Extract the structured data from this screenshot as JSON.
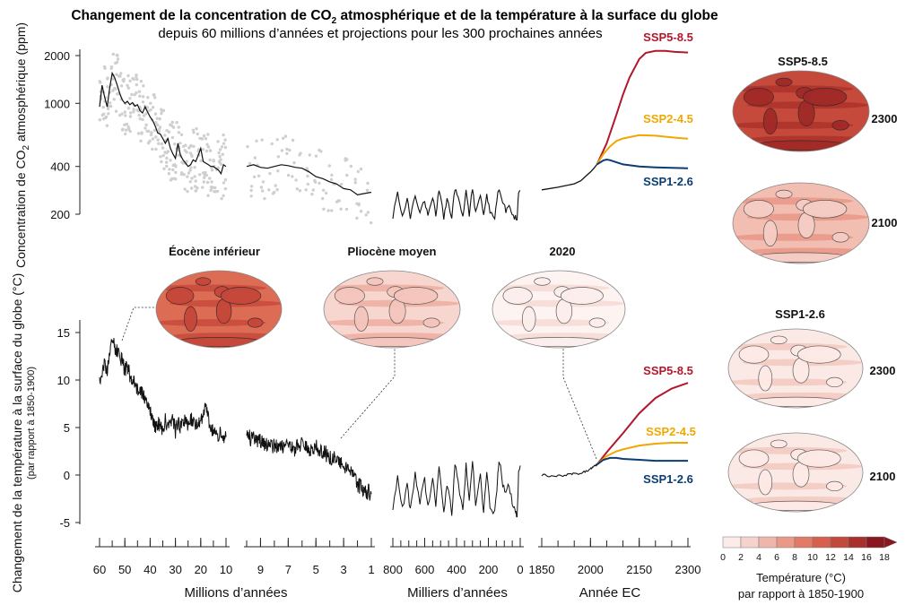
{
  "title": "Changement de la concentration de CO",
  "title_subscript": "2",
  "title_rest": " atmosphérique et de la température à la surface du globe",
  "subtitle": "depuis 60 millions d’années et projections pour les 300 prochaines années",
  "colors": {
    "ssp585": "#b2182b",
    "ssp245": "#f0a800",
    "ssp126": "#0b3d72",
    "history": "#111111",
    "proxy_dots": "#cfcfcf"
  },
  "chart_data": [
    {
      "type": "line",
      "name": "co2",
      "ylabel": "Concentration de CO₂ atmosphérique (ppm)",
      "ylabel_main": "Concentration de CO",
      "ylabel_sub": "2",
      "ylabel_rest": " atmosphérique (ppm)",
      "yscale": "log",
      "yticks": [
        200,
        400,
        1000,
        2000
      ],
      "ylim": [
        160,
        2600
      ],
      "panels": [
        {
          "xlabel": "Millions d’années",
          "segments": [
            {
              "xlim": [
                60,
                10
              ],
              "x": [
                60,
                59,
                58,
                57,
                56,
                55,
                54,
                53,
                52,
                51,
                50,
                49,
                48,
                47,
                46,
                45,
                44,
                43,
                42,
                41,
                40,
                39,
                38,
                37,
                36,
                35,
                34,
                33,
                32,
                31,
                30,
                29,
                28,
                27,
                26,
                25,
                24,
                23,
                22,
                21,
                20,
                19,
                18,
                17,
                16,
                15,
                14,
                13,
                12,
                11,
                10
              ],
              "y": [
                950,
                1300,
                1100,
                950,
                1250,
                1550,
                1450,
                1300,
                1150,
                1050,
                1000,
                1030,
                980,
                1010,
                960,
                980,
                900,
                870,
                950,
                880,
                820,
                780,
                720,
                650,
                640,
                600,
                560,
                600,
                520,
                480,
                450,
                560,
                470,
                440,
                420,
                400,
                410,
                440,
                430,
                470,
                520,
                430,
                420,
                410,
                400,
                400,
                390,
                380,
                360,
                410,
                400
              ]
            },
            {
              "xlim": [
                10,
                1
              ],
              "x": [
                10,
                9.5,
                9,
                8.5,
                8,
                7.5,
                7,
                6.5,
                6,
                5.5,
                5,
                4.5,
                4,
                3.5,
                3,
                2.5,
                2,
                1.5,
                1
              ],
              "y": [
                400,
                410,
                395,
                390,
                400,
                410,
                405,
                395,
                390,
                370,
                345,
                335,
                320,
                310,
                290,
                285,
                265,
                270,
                275
              ]
            }
          ]
        },
        {
          "xlabel": "Milliers d’années",
          "xlim": [
            800,
            0
          ],
          "x": [
            800,
            770,
            740,
            710,
            690,
            660,
            630,
            600,
            580,
            550,
            530,
            510,
            480,
            460,
            430,
            410,
            390,
            360,
            340,
            320,
            300,
            280,
            250,
            230,
            210,
            190,
            160,
            140,
            130,
            110,
            90,
            70,
            50,
            30,
            20,
            10,
            0
          ],
          "y": [
            190,
            270,
            190,
            250,
            195,
            260,
            200,
            245,
            195,
            255,
            200,
            280,
            190,
            250,
            190,
            290,
            260,
            190,
            280,
            200,
            290,
            200,
            260,
            190,
            270,
            200,
            190,
            270,
            290,
            240,
            210,
            230,
            200,
            190,
            185,
            270,
            280
          ]
        },
        {
          "xlabel": "Année EC",
          "xlim": [
            1850,
            2300
          ],
          "xticks": [
            1850,
            2000,
            2150,
            2300
          ],
          "history": {
            "x": [
              1850,
              1900,
              1950,
              1970,
              1990,
              2000,
              2010,
              2020
            ],
            "y": [
              285,
              296,
              311,
              325,
              354,
              369,
              389,
              412
            ]
          },
          "series": [
            {
              "name": "SSP5-8.5",
              "x": [
                2020,
                2050,
                2080,
                2100,
                2120,
                2150,
                2170,
                2200,
                2230,
                2260,
                2300
              ],
              "y": [
                412,
                560,
                850,
                1135,
                1450,
                1900,
                2080,
                2140,
                2140,
                2110,
                2090
              ]
            },
            {
              "name": "SSP2-4.5",
              "x": [
                2020,
                2040,
                2060,
                2080,
                2100,
                2150,
                2200,
                2250,
                2300
              ],
              "y": [
                412,
                480,
                535,
                580,
                600,
                630,
                625,
                610,
                598
              ]
            },
            {
              "name": "SSP1-2.6",
              "x": [
                2020,
                2040,
                2050,
                2060,
                2080,
                2100,
                2150,
                2200,
                2250,
                2300
              ],
              "y": [
                412,
                437,
                442,
                438,
                425,
                412,
                400,
                395,
                392,
                390
              ]
            }
          ]
        }
      ]
    },
    {
      "type": "line",
      "name": "temperature",
      "ylabel": "Changement de la température à la surface du globe (°C)",
      "ylabel_sub": "(par rapport à 1850-1900)",
      "yticks": [
        -5,
        0,
        5,
        10,
        15
      ],
      "ylim": [
        -5.5,
        16
      ],
      "panels": [
        {
          "xlabel": "Millions d’années",
          "xticks": [
            60,
            50,
            40,
            30,
            20,
            10
          ],
          "segments": [
            {
              "xlim": [
                60,
                10
              ],
              "x": [
                60,
                59,
                58,
                57,
                56,
                55,
                54,
                53,
                52,
                51,
                50,
                49,
                48,
                47,
                46,
                45,
                44,
                43,
                42,
                41,
                40,
                39,
                38,
                37,
                36,
                35,
                34,
                33,
                32,
                31,
                30,
                29,
                28,
                27,
                26,
                25,
                24,
                23,
                22,
                21,
                20,
                19,
                18,
                17,
                16,
                15,
                14,
                13,
                12,
                11,
                10
              ],
              "y": [
                10,
                11,
                12,
                11,
                13,
                14,
                13.5,
                13,
                12.5,
                12,
                11,
                11.5,
                10.5,
                10,
                9.5,
                9,
                9,
                8.5,
                8,
                7.5,
                7,
                6,
                5,
                5.5,
                5,
                4.5,
                6,
                5,
                5.5,
                6,
                4.5,
                5.5,
                5,
                6,
                5.5,
                5,
                6,
                5.5,
                5,
                6,
                5.5,
                6.5,
                7,
                6,
                5,
                4.5,
                5,
                4,
                4.5,
                4,
                4
              ]
            },
            {
              "xlim": [
                10,
                1
              ],
              "xticks": [
                9,
                7,
                5,
                3,
                1
              ],
              "x": [
                10,
                9.5,
                9,
                8.5,
                8,
                7.5,
                7,
                6.5,
                6,
                5.5,
                5,
                4.5,
                4,
                3.5,
                3,
                2.5,
                2,
                1.5,
                1
              ],
              "y": [
                4,
                3.8,
                3.5,
                3.2,
                3,
                3,
                2.8,
                2.8,
                3.5,
                2.5,
                3,
                2.5,
                2,
                1.5,
                1,
                0.5,
                -1,
                -1.5,
                -2
              ]
            }
          ]
        },
        {
          "xlabel": "Milliers d’années",
          "xlim": [
            800,
            0
          ],
          "xticks": [
            800,
            600,
            400,
            200,
            0
          ],
          "x": [
            800,
            770,
            740,
            710,
            690,
            660,
            630,
            600,
            580,
            550,
            530,
            510,
            480,
            460,
            430,
            410,
            390,
            360,
            340,
            320,
            300,
            280,
            250,
            230,
            210,
            190,
            160,
            140,
            130,
            110,
            90,
            70,
            50,
            30,
            20,
            10,
            0
          ],
          "y": [
            -3.5,
            0,
            -3.5,
            -1,
            -3.8,
            0,
            -3,
            -0.5,
            -3.5,
            0,
            -3,
            1,
            -4,
            -1,
            -4,
            1,
            -0.5,
            -4,
            1,
            -3,
            1.5,
            -3,
            0,
            -4,
            0.5,
            -3.5,
            -4,
            0,
            1.5,
            -1,
            -2,
            -1,
            -3,
            -4,
            -4.5,
            0,
            1
          ]
        },
        {
          "xlabel": "Année EC",
          "xlim": [
            1850,
            2300
          ],
          "xticks": [
            1850,
            2000,
            2150,
            2300
          ],
          "history": {
            "x": [
              1850,
              1880,
              1910,
              1940,
              1960,
              1980,
              2000,
              2010,
              2020
            ],
            "y": [
              0,
              -0.1,
              -0.1,
              0.1,
              0.1,
              0.3,
              0.7,
              0.9,
              1.1
            ]
          },
          "series": [
            {
              "name": "SSP5-8.5",
              "x": [
                2020,
                2050,
                2080,
                2100,
                2150,
                2200,
                2250,
                2300
              ],
              "y": [
                1.1,
                2.4,
                3.6,
                4.4,
                6.5,
                8.1,
                9.1,
                9.7
              ]
            },
            {
              "name": "SSP2-4.5",
              "x": [
                2020,
                2050,
                2080,
                2100,
                2150,
                2200,
                2250,
                2300
              ],
              "y": [
                1.1,
                2.0,
                2.5,
                2.7,
                3.1,
                3.3,
                3.4,
                3.4
              ]
            },
            {
              "name": "SSP1-2.6",
              "x": [
                2020,
                2040,
                2060,
                2080,
                2100,
                2150,
                2200,
                2250,
                2300
              ],
              "y": [
                1.1,
                1.6,
                1.8,
                1.8,
                1.7,
                1.6,
                1.5,
                1.5,
                1.5
              ]
            }
          ]
        }
      ]
    }
  ],
  "maps": {
    "past": [
      {
        "label": "Éocène inférieur"
      },
      {
        "label": "Pliocène moyen"
      },
      {
        "label": "2020"
      }
    ],
    "ssp585_header": "SSP5-8.5",
    "ssp126_header": "SSP1-2.6",
    "years": {
      "y2300": "2300",
      "y2100": "2100"
    }
  },
  "colorbar": {
    "ticks": [
      "0",
      "2",
      "4",
      "6",
      "8",
      "10",
      "12",
      "14",
      "16",
      "18"
    ],
    "colors": [
      "#fbecea",
      "#f6d2cc",
      "#f0b5ab",
      "#ea9888",
      "#e27a68",
      "#d6604d",
      "#c24a3c",
      "#a7302d",
      "#8a1620"
    ],
    "title": "Température (°C)",
    "subtitle": "par rapport à 1850-1900"
  }
}
